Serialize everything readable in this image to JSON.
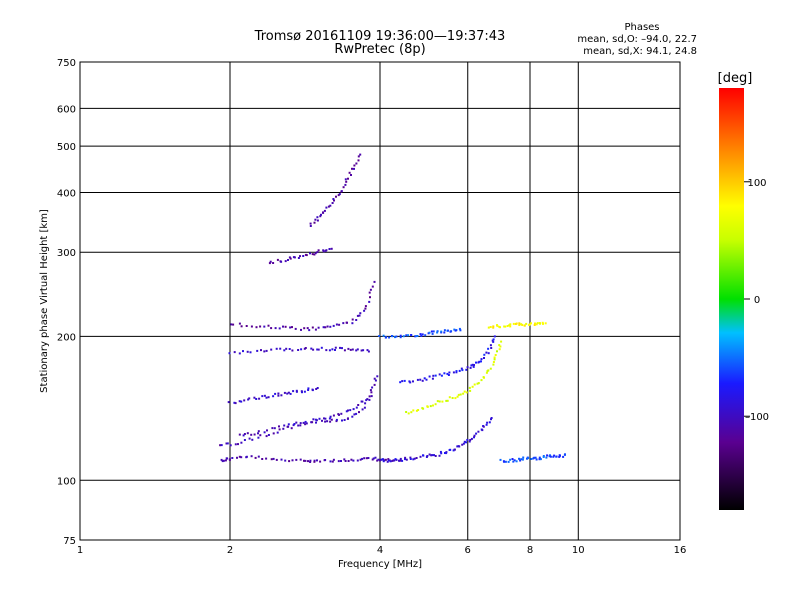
{
  "chart_data": {
    "type": "scatter",
    "title": "Tromsø 20161109 19:36:00—19:37:43",
    "subtitle": "RwPretec (8p)",
    "xlabel": "Frequency [MHz]",
    "ylabel": "Stationary phase Virtual Height [km]",
    "x_scale": "log",
    "y_scale": "log",
    "xlim": [
      1,
      16
    ],
    "ylim": [
      75,
      750
    ],
    "x_ticks": [
      1,
      2,
      4,
      6,
      8,
      10,
      16
    ],
    "x_tick_labels": [
      "1",
      "2",
      "4",
      "6",
      "8",
      "10",
      "16"
    ],
    "y_ticks": [
      75,
      100,
      200,
      300,
      400,
      500,
      600,
      750
    ],
    "y_tick_labels": [
      "75",
      "100",
      "200",
      "300",
      "400",
      "500",
      "600",
      "750"
    ],
    "grid": true,
    "info_title": "Phases",
    "info_lines": [
      "mean, sd,O: –94.0, 22.7",
      "mean, sd,X:  94.1, 24.8"
    ],
    "colorbar": {
      "label": "[deg]",
      "range": [
        -180,
        180
      ],
      "ticks": [
        -100,
        0,
        100
      ],
      "tick_labels": [
        "–100",
        "0",
        "100"
      ]
    },
    "traces": [
      {
        "x": [
          1.92,
          2.0,
          2.2,
          2.5,
          2.8,
          3.0,
          3.3,
          3.6,
          3.9,
          4.1,
          4.4
        ],
        "y": [
          110,
          111,
          112,
          110,
          110,
          110,
          110,
          110,
          111,
          110,
          110
        ],
        "phase": -110
      },
      {
        "x": [
          1.9,
          2.1,
          2.4,
          2.7,
          3.0,
          3.3,
          3.6,
          3.85
        ],
        "y": [
          118,
          120,
          125,
          130,
          133,
          133,
          137,
          150
        ],
        "phase": -105
      },
      {
        "x": [
          2.1,
          2.3,
          2.6,
          2.9,
          3.2,
          3.5,
          3.8,
          3.95
        ],
        "y": [
          124,
          126,
          130,
          133,
          136,
          140,
          150,
          165
        ],
        "phase": -100
      },
      {
        "x": [
          2.0,
          2.2,
          2.4,
          2.6,
          2.8,
          3.0
        ],
        "y": [
          145,
          148,
          150,
          152,
          154,
          156
        ],
        "phase": -95
      },
      {
        "x": [
          2.0,
          2.3,
          2.6,
          2.9,
          3.2,
          3.5,
          3.8
        ],
        "y": [
          185,
          186,
          188,
          188,
          188,
          188,
          186
        ],
        "phase": -100
      },
      {
        "x": [
          2.0,
          2.3,
          2.6,
          2.9,
          3.2,
          3.5,
          3.75,
          3.9
        ],
        "y": [
          212,
          210,
          208,
          207,
          210,
          214,
          228,
          260
        ],
        "phase": -110
      },
      {
        "x": [
          2.4,
          2.6,
          2.8,
          3.0,
          3.2
        ],
        "y": [
          285,
          290,
          295,
          300,
          305
        ],
        "phase": -110
      },
      {
        "x": [
          2.9,
          3.05,
          3.2,
          3.35,
          3.5,
          3.65
        ],
        "y": [
          340,
          360,
          380,
          405,
          440,
          480
        ],
        "phase": -110
      },
      {
        "x": [
          4.0,
          4.3,
          4.6,
          4.9,
          5.2,
          5.5,
          5.8
        ],
        "y": [
          200,
          200,
          201,
          202,
          204,
          205,
          206
        ],
        "phase": -60
      },
      {
        "x": [
          4.0,
          4.3,
          4.6,
          4.9,
          5.2,
          5.5,
          5.8,
          6.1,
          6.4,
          6.7
        ],
        "y": [
          110,
          110,
          111,
          112,
          113,
          115,
          118,
          122,
          128,
          135
        ],
        "phase": -90
      },
      {
        "x": [
          4.5,
          4.9,
          5.3,
          5.7,
          6.1,
          6.5,
          6.8,
          7.0
        ],
        "y": [
          138,
          142,
          146,
          150,
          155,
          165,
          178,
          195
        ],
        "phase": 60
      },
      {
        "x": [
          4.4,
          4.8,
          5.2,
          5.6,
          6.0,
          6.3,
          6.6,
          6.8
        ],
        "y": [
          160,
          162,
          165,
          168,
          172,
          176,
          185,
          200
        ],
        "phase": -80
      },
      {
        "x": [
          6.6,
          7.0,
          7.4,
          7.8,
          8.2,
          8.6
        ],
        "y": [
          210,
          210,
          211,
          212,
          212,
          213
        ],
        "phase": 80
      },
      {
        "x": [
          7.0,
          7.4,
          7.8,
          8.2,
          8.6,
          9.0,
          9.4
        ],
        "y": [
          110,
          110,
          111,
          111,
          112,
          112,
          113
        ],
        "phase": -60
      }
    ]
  }
}
